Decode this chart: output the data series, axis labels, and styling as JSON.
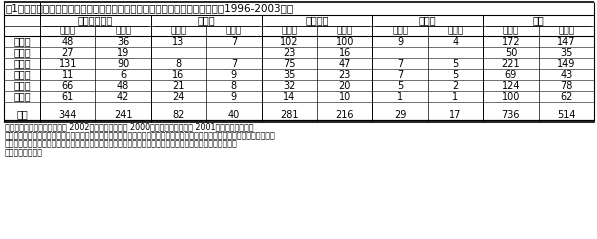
{
  "title": "表1　東北６県のスルホニルウレア系除草剤抵抗性バイオタイプの確認件数（1996-2003年）",
  "col_groups": [
    "イヌホタルイ",
    "コナギ",
    "アゼナ類",
    "その他",
    "合計"
  ],
  "col_subheaders": [
    "検定数",
    "確認数"
  ],
  "row_labels": [
    "青森県",
    "岩手県",
    "宮城県",
    "秋田県",
    "山形県",
    "福島県"
  ],
  "data": [
    [
      48,
      36,
      13,
      7,
      102,
      100,
      9,
      4,
      172,
      147
    ],
    [
      27,
      19,
      "",
      "",
      23,
      16,
      "",
      "",
      50,
      35
    ],
    [
      131,
      90,
      8,
      7,
      75,
      47,
      7,
      5,
      221,
      149
    ],
    [
      11,
      6,
      16,
      9,
      35,
      23,
      7,
      5,
      69,
      43
    ],
    [
      66,
      48,
      21,
      8,
      32,
      20,
      5,
      2,
      124,
      78
    ],
    [
      61,
      42,
      24,
      9,
      14,
      10,
      1,
      1,
      100,
      62
    ]
  ],
  "total": [
    344,
    241,
    82,
    40,
    281,
    216,
    29,
    17,
    736,
    514
  ],
  "footnote_lines": [
    "注）確認は迅速検定法（内野 2002）、発根法（村岡 2000）、ポット試験（汪 2001）の何れかの検定",
    "法による。アゼナ類はアゼナ、アメリカアゼナ、タケトアゼナの合計値。その他は、アゼトウガラシ、ミズアオイ、タイワンヤ",
    "マイ、ジゾハベ、キシゾガ、キノモ、ホダガかの合計値。検定数は、複数の隣接圃場で出ていても１地域を１",
    "点として数えた。"
  ],
  "bg_color": "#ffffff",
  "line_color": "#000000",
  "text_color": "#000000",
  "figsize": [
    5.97,
    2.39
  ],
  "dpi": 100
}
